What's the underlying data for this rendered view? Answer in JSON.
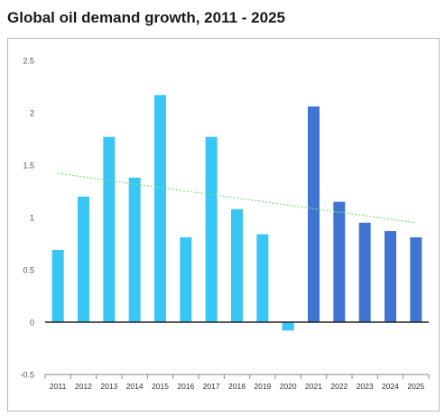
{
  "chart_data": {
    "type": "bar",
    "title": "Global oil demand growth, 2011 - 2025",
    "categories": [
      "2011",
      "2012",
      "2013",
      "2014",
      "2015",
      "2016",
      "2017",
      "2018",
      "2019",
      "2020",
      "2021",
      "2022",
      "2023",
      "2024",
      "2025"
    ],
    "values": [
      0.69,
      1.2,
      1.77,
      1.38,
      2.17,
      0.81,
      1.77,
      1.08,
      0.84,
      -0.08,
      2.06,
      1.15,
      0.95,
      0.87,
      0.81
    ],
    "y_ticks": [
      "2.5",
      "2",
      "1.5",
      "1",
      "0.5",
      "0",
      "-0.5"
    ],
    "ylim": [
      -0.5,
      2.5
    ],
    "trendline": {
      "start": 1.42,
      "end": 0.95
    },
    "colors": {
      "historical": "#38c6f4",
      "forecast": "#3f75d1",
      "trendline": "#79e07f",
      "zero_line": "#222222"
    },
    "forecast_start_index": 10,
    "grid": false,
    "legend": "none"
  }
}
